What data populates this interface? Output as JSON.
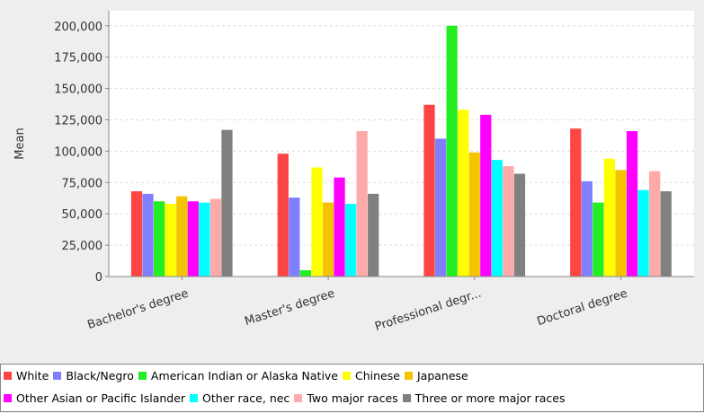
{
  "chart_data": {
    "type": "bar",
    "title": "",
    "xlabel": "",
    "ylabel": "Mean",
    "ylim": [
      0,
      212000
    ],
    "yticks": [
      0,
      25000,
      50000,
      75000,
      100000,
      125000,
      150000,
      175000,
      200000
    ],
    "ytick_labels": [
      "0",
      "25,000",
      "50,000",
      "75,000",
      "100,000",
      "125,000",
      "150,000",
      "175,000",
      "200,000"
    ],
    "categories": [
      "Bachelor's degree",
      "Master's degree",
      "Professional degr...",
      "Doctoral degree"
    ],
    "grid": true,
    "legend_position": "bottom",
    "series": [
      {
        "name": "White",
        "color": "#ff4444",
        "values": [
          68000,
          98000,
          137000,
          118000
        ]
      },
      {
        "name": "Black/Negro",
        "color": "#8080ff",
        "values": [
          66000,
          63000,
          110000,
          76000
        ]
      },
      {
        "name": "American Indian or Alaska Native",
        "color": "#22ee22",
        "values": [
          60000,
          5000,
          200000,
          59000
        ]
      },
      {
        "name": "Chinese",
        "color": "#ffff00",
        "values": [
          58000,
          87000,
          133000,
          94000
        ]
      },
      {
        "name": "Japanese",
        "color": "#f5c400",
        "values": [
          64000,
          59000,
          99000,
          85000
        ]
      },
      {
        "name": "Other Asian or Pacific Islander",
        "color": "#ff00ff",
        "values": [
          60000,
          79000,
          129000,
          116000
        ]
      },
      {
        "name": "Other race, nec",
        "color": "#00ffff",
        "values": [
          59000,
          58000,
          93000,
          69000
        ]
      },
      {
        "name": "Two major races",
        "color": "#ffaaaa",
        "values": [
          62000,
          116000,
          88000,
          84000
        ]
      },
      {
        "name": "Three or more major races",
        "color": "#808080",
        "values": [
          117000,
          66000,
          82000,
          68000
        ]
      }
    ]
  }
}
